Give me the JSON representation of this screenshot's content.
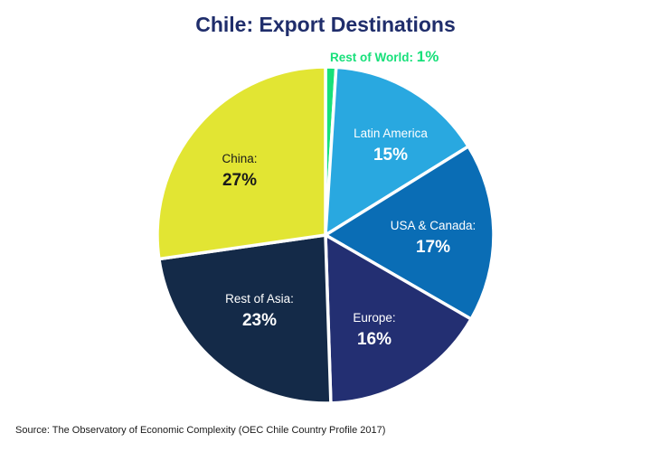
{
  "chart_data": {
    "type": "pie",
    "title": "Chile: Export Destinations",
    "source": "Source: The Observatory of Economic Complexity (OEC Chile Country Profile 2017)",
    "slices": [
      {
        "name": "Rest of World:",
        "value": 1,
        "label": "1%",
        "color": "#17e07a",
        "label_color": "#17e07a",
        "outside": true
      },
      {
        "name": "Latin America",
        "value": 15,
        "label": "15%",
        "color": "#29a8e0",
        "label_color": "#ffffff",
        "outside": false
      },
      {
        "name": "USA & Canada:",
        "value": 17,
        "label": "17%",
        "color": "#0a6db5",
        "label_color": "#ffffff",
        "outside": false
      },
      {
        "name": "Europe:",
        "value": 16,
        "label": "16%",
        "color": "#232f72",
        "label_color": "#ffffff",
        "outside": false
      },
      {
        "name": "Rest of Asia:",
        "value": 23,
        "label": "23%",
        "color": "#142a48",
        "label_color": "#ffffff",
        "outside": false
      },
      {
        "name": "China:",
        "value": 27,
        "label": "27%",
        "color": "#e2e533",
        "label_color": "#1a1a1a",
        "outside": false
      }
    ],
    "legend": "none"
  }
}
